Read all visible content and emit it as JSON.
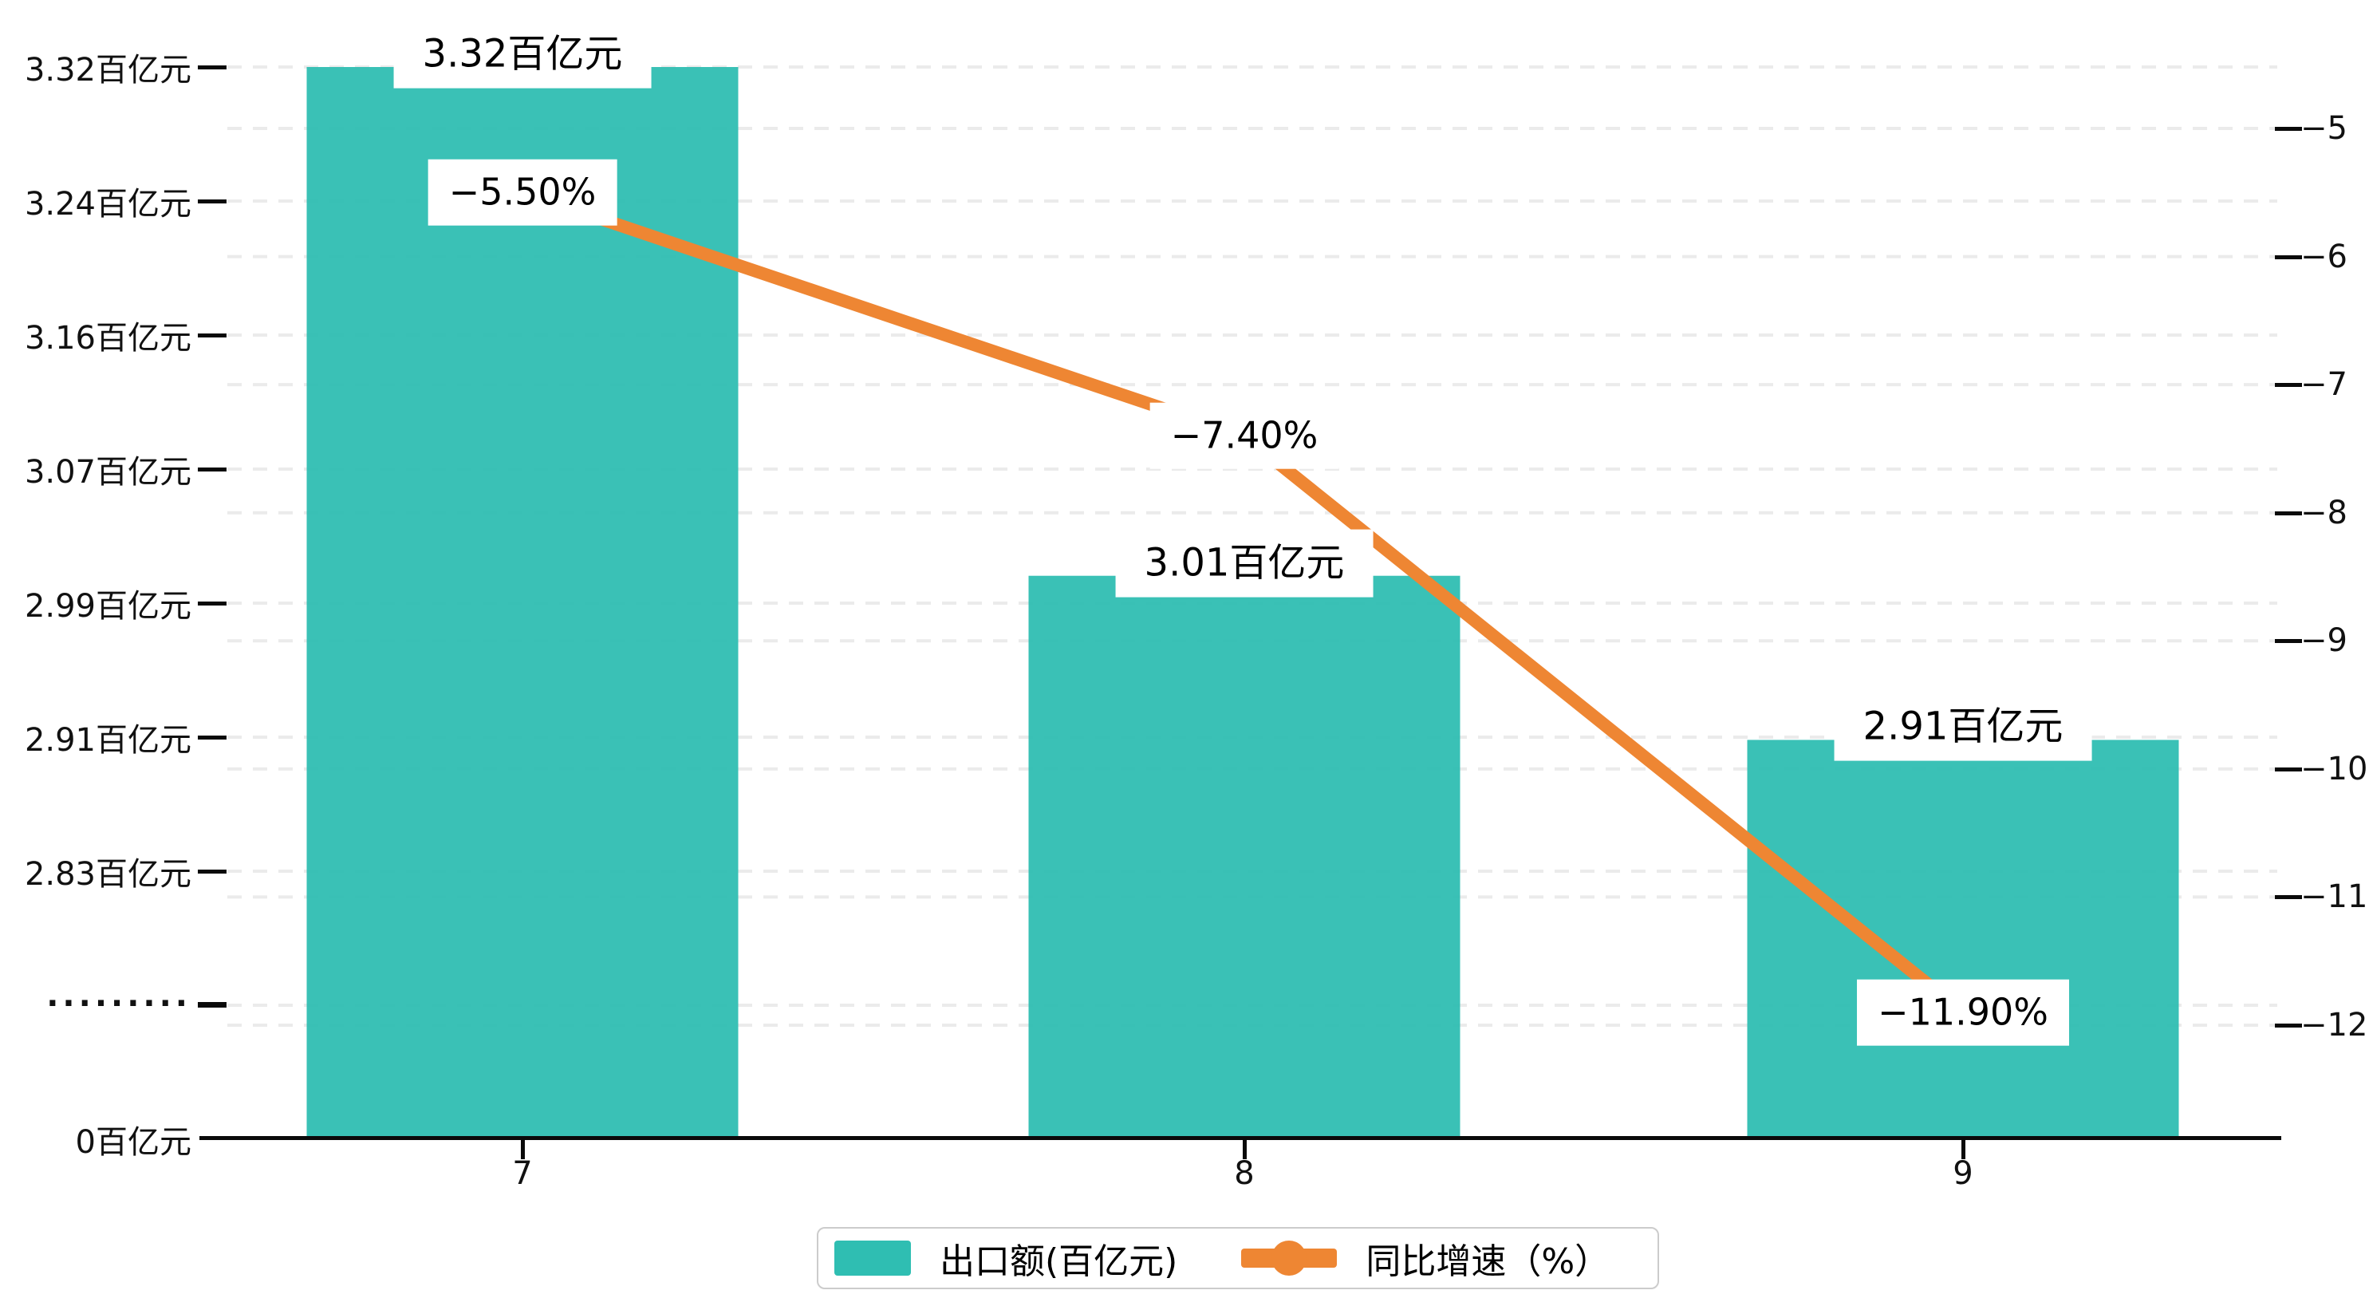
{
  "chart_data": {
    "type": "bar+line",
    "categories": [
      "7",
      "8",
      "9"
    ],
    "series": [
      {
        "name": "出口额(百亿元)",
        "type": "bar",
        "axis": "left",
        "unit": "百亿元",
        "color": "#2FBEB2",
        "values": [
          3.32,
          3.01,
          2.91
        ],
        "labels": [
          "3.32百亿元",
          "3.01百亿元",
          "2.91百亿元"
        ]
      },
      {
        "name": "同比增速（%）",
        "type": "line",
        "axis": "right",
        "unit": "%",
        "color": "#EE8633",
        "values": [
          -5.5,
          -7.4,
          -11.9
        ],
        "labels": [
          "−5.50%",
          "−7.40%",
          "−11.90%"
        ]
      }
    ],
    "left_axis": {
      "ticks": [
        "0百亿元",
        "·········",
        "2.83百亿元",
        "2.91百亿元",
        "2.99百亿元",
        "3.07百亿元",
        "3.16百亿元",
        "3.24百亿元",
        "3.32百亿元"
      ],
      "broken_axis": true,
      "range_shown": [
        2.83,
        3.32
      ]
    },
    "right_axis": {
      "ticks": [
        "−5",
        "−6",
        "−7",
        "−8",
        "−9",
        "−10",
        "−11",
        "−12"
      ],
      "range": [
        -5,
        -12
      ]
    },
    "x_axis": {
      "ticks": [
        "7",
        "8",
        "9"
      ]
    },
    "legend": {
      "items": [
        "出口额(百亿元)",
        "同比增速（%）"
      ],
      "position": "bottom-center"
    },
    "grid": "dashed light-gray split lines from both axes",
    "colors": {
      "bar": "#2FBEB2",
      "line": "#EE8633",
      "axis": "#0a0a0a",
      "gridline": "#ebebeb",
      "label_background": "#ffffff"
    }
  }
}
